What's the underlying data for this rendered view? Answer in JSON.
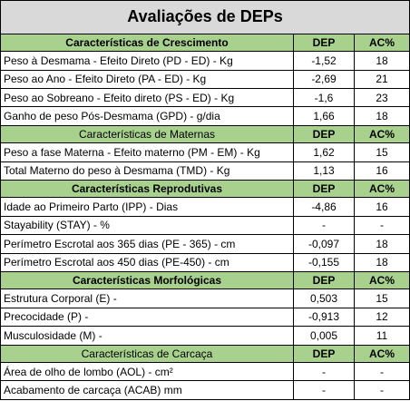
{
  "title": "Avaliações de DEPs",
  "headers": {
    "dep": "DEP",
    "ac": "AC%"
  },
  "sections": [
    {
      "name": "Características de Crescimento",
      "bold": true,
      "rows": [
        {
          "label": "Peso à Desmama - Efeito Direto (PD - ED) - Kg",
          "dep": "-1,52",
          "ac": "18"
        },
        {
          "label": "Peso ao Ano - Efeito Direto (PA - ED) - Kg",
          "dep": "-2,69",
          "ac": "21"
        },
        {
          "label": "Peso ao Sobreano - Efeito direto (PS - ED) - Kg",
          "dep": "-1,6",
          "ac": "23"
        },
        {
          "label": "Ganho de peso Pós-Desmama (GPD) - g/dia",
          "dep": "1,66",
          "ac": "18"
        }
      ]
    },
    {
      "name": "Características de Maternas",
      "bold": false,
      "rows": [
        {
          "label": "Peso a fase Materna - Efeito materno (PM - EM) - Kg",
          "dep": "1,62",
          "ac": "15"
        },
        {
          "label": "Total Materno do peso à Desmama (TMD) - Kg",
          "dep": "1,13",
          "ac": "16"
        }
      ]
    },
    {
      "name": "Características Reprodutivas",
      "bold": true,
      "rows": [
        {
          "label": "Idade ao Primeiro Parto (IPP) - Dias",
          "dep": "-4,86",
          "ac": "16"
        },
        {
          "label": "Stayability (STAY) - %",
          "dep": "-",
          "ac": "-"
        },
        {
          "label": "Perímetro Escrotal aos 365 dias (PE - 365) - cm",
          "dep": "-0,097",
          "ac": "18"
        },
        {
          "label": "Perímetro Escrotal aos 450 dias (PE-450) - cm",
          "dep": "-0,155",
          "ac": "18"
        }
      ]
    },
    {
      "name": "Características Morfológicas",
      "bold": true,
      "rows": [
        {
          "label": "Estrutura Corporal (E) -",
          "dep": "0,503",
          "ac": "15"
        },
        {
          "label": "Precocidade (P) -",
          "dep": "-0,913",
          "ac": "12"
        },
        {
          "label": "Musculosidade (M) -",
          "dep": "0,005",
          "ac": "11"
        }
      ]
    },
    {
      "name": "Características de Carcaça",
      "bold": false,
      "rows": [
        {
          "label": "Área de olho de lombo (AOL) - cm²",
          "dep": "-",
          "ac": "-"
        },
        {
          "label": "Acabamento de carcaça (ACAB) mm",
          "dep": "-",
          "ac": "-"
        }
      ]
    }
  ]
}
